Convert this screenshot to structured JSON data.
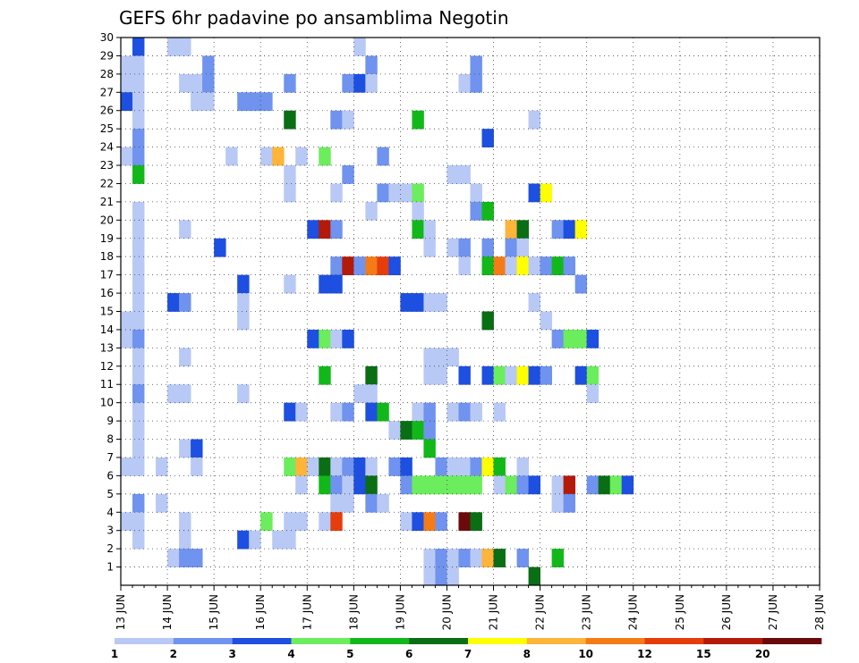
{
  "chart_data": {
    "type": "heatmap",
    "title": "GEFS 6hr padavine po ansamblima Negotin",
    "xlabel": "",
    "ylabel": "",
    "x_ticks": [
      "13 JUN",
      "14 JUN",
      "15 JUN",
      "16 JUN",
      "17 JUN",
      "18 JUN",
      "19 JUN",
      "20 JUN",
      "21 JUN",
      "22 JUN",
      "23 JUN",
      "24 JUN",
      "25 JUN",
      "26 JUN",
      "27 JUN",
      "28 JUN"
    ],
    "y_ticks": [
      1,
      2,
      3,
      4,
      5,
      6,
      7,
      8,
      9,
      10,
      11,
      12,
      13,
      14,
      15,
      16,
      17,
      18,
      19,
      20,
      21,
      22,
      23,
      24,
      25,
      26,
      27,
      28,
      29,
      30
    ],
    "xlim": [
      "13 JUN",
      "28 JUN"
    ],
    "ylim": [
      0,
      30
    ],
    "grid": true,
    "x_axis_note": "6-hourly steps, 4 per day",
    "legend": {
      "placement": "bottom",
      "labels": [
        "1",
        "2",
        "3",
        "4",
        "5",
        "6",
        "7",
        "8",
        "10",
        "12",
        "15",
        "20"
      ],
      "colors": [
        "#b9c9f5",
        "#6f93ee",
        "#1d4fe0",
        "#6ced5d",
        "#12b81a",
        "#0a6e14",
        "#ffff00",
        "#ffb43a",
        "#f57b16",
        "#e63d0c",
        "#b31a0a",
        "#6b0a0a"
      ]
    },
    "cells_note": "each entry is [step index from 13 JUN 00z, ensemble member, color class 0-11 matching legend.colors]",
    "cells": [
      [
        1,
        30,
        2
      ],
      [
        4,
        30,
        0
      ],
      [
        5,
        30,
        0
      ],
      [
        20,
        30,
        0
      ],
      [
        0,
        29,
        0
      ],
      [
        1,
        29,
        0
      ],
      [
        7,
        29,
        1
      ],
      [
        21,
        29,
        1
      ],
      [
        30,
        29,
        1
      ],
      [
        0,
        28,
        0
      ],
      [
        1,
        28,
        0
      ],
      [
        5,
        28,
        0
      ],
      [
        6,
        28,
        0
      ],
      [
        7,
        28,
        1
      ],
      [
        14,
        28,
        1
      ],
      [
        19,
        28,
        1
      ],
      [
        20,
        28,
        2
      ],
      [
        21,
        28,
        0
      ],
      [
        29,
        28,
        0
      ],
      [
        30,
        28,
        1
      ],
      [
        0,
        27,
        2
      ],
      [
        1,
        27,
        0
      ],
      [
        6,
        27,
        0
      ],
      [
        7,
        27,
        0
      ],
      [
        10,
        27,
        1
      ],
      [
        11,
        27,
        1
      ],
      [
        12,
        27,
        1
      ],
      [
        1,
        26,
        0
      ],
      [
        14,
        26,
        5
      ],
      [
        18,
        26,
        1
      ],
      [
        19,
        26,
        0
      ],
      [
        25,
        26,
        4
      ],
      [
        35,
        26,
        0
      ],
      [
        1,
        25,
        1
      ],
      [
        31,
        25,
        2
      ],
      [
        0,
        24,
        0
      ],
      [
        1,
        24,
        1
      ],
      [
        9,
        24,
        0
      ],
      [
        12,
        24,
        0
      ],
      [
        13,
        24,
        7
      ],
      [
        15,
        24,
        0
      ],
      [
        17,
        24,
        3
      ],
      [
        22,
        24,
        1
      ],
      [
        1,
        23,
        4
      ],
      [
        14,
        23,
        0
      ],
      [
        19,
        23,
        1
      ],
      [
        28,
        23,
        0
      ],
      [
        29,
        23,
        0
      ],
      [
        14,
        22,
        0
      ],
      [
        18,
        22,
        0
      ],
      [
        22,
        22,
        1
      ],
      [
        23,
        22,
        0
      ],
      [
        24,
        22,
        0
      ],
      [
        25,
        22,
        3
      ],
      [
        30,
        22,
        0
      ],
      [
        35,
        22,
        2
      ],
      [
        36,
        22,
        6
      ],
      [
        1,
        21,
        0
      ],
      [
        21,
        21,
        0
      ],
      [
        25,
        21,
        0
      ],
      [
        30,
        21,
        1
      ],
      [
        31,
        21,
        4
      ],
      [
        1,
        20,
        0
      ],
      [
        5,
        20,
        0
      ],
      [
        16,
        20,
        2
      ],
      [
        17,
        20,
        10
      ],
      [
        18,
        20,
        1
      ],
      [
        25,
        20,
        4
      ],
      [
        26,
        20,
        0
      ],
      [
        33,
        20,
        7
      ],
      [
        34,
        20,
        5
      ],
      [
        37,
        20,
        1
      ],
      [
        38,
        20,
        2
      ],
      [
        39,
        20,
        6
      ],
      [
        1,
        19,
        0
      ],
      [
        8,
        19,
        2
      ],
      [
        26,
        19,
        0
      ],
      [
        28,
        19,
        0
      ],
      [
        29,
        19,
        1
      ],
      [
        31,
        19,
        1
      ],
      [
        33,
        19,
        1
      ],
      [
        34,
        19,
        0
      ],
      [
        1,
        18,
        0
      ],
      [
        18,
        18,
        1
      ],
      [
        19,
        18,
        10
      ],
      [
        20,
        18,
        1
      ],
      [
        21,
        18,
        8
      ],
      [
        22,
        18,
        9
      ],
      [
        23,
        18,
        2
      ],
      [
        29,
        18,
        0
      ],
      [
        31,
        18,
        4
      ],
      [
        32,
        18,
        8
      ],
      [
        33,
        18,
        0
      ],
      [
        34,
        18,
        6
      ],
      [
        35,
        18,
        0
      ],
      [
        36,
        18,
        1
      ],
      [
        37,
        18,
        4
      ],
      [
        38,
        18,
        1
      ],
      [
        1,
        17,
        0
      ],
      [
        10,
        17,
        2
      ],
      [
        14,
        17,
        0
      ],
      [
        17,
        17,
        2
      ],
      [
        18,
        17,
        2
      ],
      [
        39,
        17,
        1
      ],
      [
        1,
        16,
        0
      ],
      [
        4,
        16,
        2
      ],
      [
        5,
        16,
        1
      ],
      [
        10,
        16,
        0
      ],
      [
        24,
        16,
        2
      ],
      [
        25,
        16,
        2
      ],
      [
        26,
        16,
        0
      ],
      [
        27,
        16,
        0
      ],
      [
        35,
        16,
        0
      ],
      [
        0,
        15,
        0
      ],
      [
        1,
        15,
        0
      ],
      [
        10,
        15,
        0
      ],
      [
        31,
        15,
        5
      ],
      [
        36,
        15,
        0
      ],
      [
        0,
        14,
        0
      ],
      [
        1,
        14,
        1
      ],
      [
        16,
        14,
        2
      ],
      [
        17,
        14,
        3
      ],
      [
        18,
        14,
        0
      ],
      [
        19,
        14,
        2
      ],
      [
        37,
        14,
        1
      ],
      [
        38,
        14,
        3
      ],
      [
        39,
        14,
        3
      ],
      [
        40,
        14,
        2
      ],
      [
        1,
        13,
        0
      ],
      [
        5,
        13,
        0
      ],
      [
        26,
        13,
        0
      ],
      [
        27,
        13,
        0
      ],
      [
        28,
        13,
        0
      ],
      [
        1,
        12,
        0
      ],
      [
        17,
        12,
        4
      ],
      [
        21,
        12,
        5
      ],
      [
        26,
        12,
        0
      ],
      [
        27,
        12,
        0
      ],
      [
        29,
        12,
        2
      ],
      [
        31,
        12,
        2
      ],
      [
        32,
        12,
        3
      ],
      [
        33,
        12,
        0
      ],
      [
        34,
        12,
        6
      ],
      [
        35,
        12,
        2
      ],
      [
        36,
        12,
        1
      ],
      [
        39,
        12,
        2
      ],
      [
        40,
        12,
        3
      ],
      [
        1,
        11,
        1
      ],
      [
        4,
        11,
        0
      ],
      [
        5,
        11,
        0
      ],
      [
        10,
        11,
        0
      ],
      [
        20,
        11,
        0
      ],
      [
        21,
        11,
        0
      ],
      [
        40,
        11,
        0
      ],
      [
        1,
        10,
        0
      ],
      [
        14,
        10,
        2
      ],
      [
        15,
        10,
        0
      ],
      [
        18,
        10,
        0
      ],
      [
        19,
        10,
        1
      ],
      [
        21,
        10,
        2
      ],
      [
        22,
        10,
        4
      ],
      [
        25,
        10,
        0
      ],
      [
        26,
        10,
        1
      ],
      [
        28,
        10,
        0
      ],
      [
        29,
        10,
        1
      ],
      [
        30,
        10,
        0
      ],
      [
        32,
        10,
        0
      ],
      [
        1,
        9,
        0
      ],
      [
        23,
        9,
        0
      ],
      [
        24,
        9,
        5
      ],
      [
        25,
        9,
        4
      ],
      [
        26,
        9,
        1
      ],
      [
        1,
        8,
        0
      ],
      [
        5,
        8,
        0
      ],
      [
        6,
        8,
        2
      ],
      [
        26,
        8,
        4
      ],
      [
        0,
        7,
        0
      ],
      [
        1,
        7,
        0
      ],
      [
        3,
        7,
        0
      ],
      [
        6,
        7,
        0
      ],
      [
        14,
        7,
        3
      ],
      [
        15,
        7,
        7
      ],
      [
        16,
        7,
        0
      ],
      [
        17,
        7,
        5
      ],
      [
        18,
        7,
        0
      ],
      [
        19,
        7,
        1
      ],
      [
        20,
        7,
        2
      ],
      [
        21,
        7,
        0
      ],
      [
        23,
        7,
        1
      ],
      [
        24,
        7,
        2
      ],
      [
        27,
        7,
        1
      ],
      [
        28,
        7,
        0
      ],
      [
        29,
        7,
        0
      ],
      [
        30,
        7,
        1
      ],
      [
        31,
        7,
        6
      ],
      [
        32,
        7,
        4
      ],
      [
        34,
        7,
        0
      ],
      [
        15,
        6,
        0
      ],
      [
        17,
        6,
        4
      ],
      [
        18,
        6,
        1
      ],
      [
        19,
        6,
        0
      ],
      [
        20,
        6,
        2
      ],
      [
        21,
        6,
        5
      ],
      [
        24,
        6,
        1
      ],
      [
        25,
        6,
        3
      ],
      [
        26,
        6,
        3
      ],
      [
        27,
        6,
        3
      ],
      [
        28,
        6,
        3
      ],
      [
        29,
        6,
        3
      ],
      [
        30,
        6,
        3
      ],
      [
        32,
        6,
        0
      ],
      [
        33,
        6,
        3
      ],
      [
        34,
        6,
        1
      ],
      [
        35,
        6,
        2
      ],
      [
        37,
        6,
        0
      ],
      [
        38,
        6,
        10
      ],
      [
        40,
        6,
        1
      ],
      [
        41,
        6,
        5
      ],
      [
        42,
        6,
        3
      ],
      [
        43,
        6,
        2
      ],
      [
        1,
        5,
        1
      ],
      [
        3,
        5,
        0
      ],
      [
        18,
        5,
        0
      ],
      [
        19,
        5,
        0
      ],
      [
        21,
        5,
        1
      ],
      [
        22,
        5,
        0
      ],
      [
        37,
        5,
        0
      ],
      [
        38,
        5,
        1
      ],
      [
        0,
        4,
        0
      ],
      [
        1,
        4,
        0
      ],
      [
        5,
        4,
        0
      ],
      [
        12,
        4,
        3
      ],
      [
        14,
        4,
        0
      ],
      [
        15,
        4,
        0
      ],
      [
        17,
        4,
        0
      ],
      [
        18,
        4,
        9
      ],
      [
        24,
        4,
        0
      ],
      [
        25,
        4,
        2
      ],
      [
        26,
        4,
        8
      ],
      [
        27,
        4,
        1
      ],
      [
        29,
        4,
        11
      ],
      [
        30,
        4,
        5
      ],
      [
        1,
        3,
        0
      ],
      [
        5,
        3,
        0
      ],
      [
        10,
        3,
        2
      ],
      [
        11,
        3,
        0
      ],
      [
        13,
        3,
        0
      ],
      [
        14,
        3,
        0
      ],
      [
        4,
        2,
        0
      ],
      [
        5,
        2,
        1
      ],
      [
        6,
        2,
        1
      ],
      [
        26,
        2,
        0
      ],
      [
        27,
        2,
        1
      ],
      [
        28,
        2,
        0
      ],
      [
        29,
        2,
        1
      ],
      [
        30,
        2,
        0
      ],
      [
        31,
        2,
        7
      ],
      [
        32,
        2,
        5
      ],
      [
        34,
        2,
        1
      ],
      [
        37,
        2,
        4
      ],
      [
        26,
        1,
        0
      ],
      [
        27,
        1,
        1
      ],
      [
        28,
        1,
        0
      ],
      [
        35,
        1,
        5
      ]
    ]
  }
}
